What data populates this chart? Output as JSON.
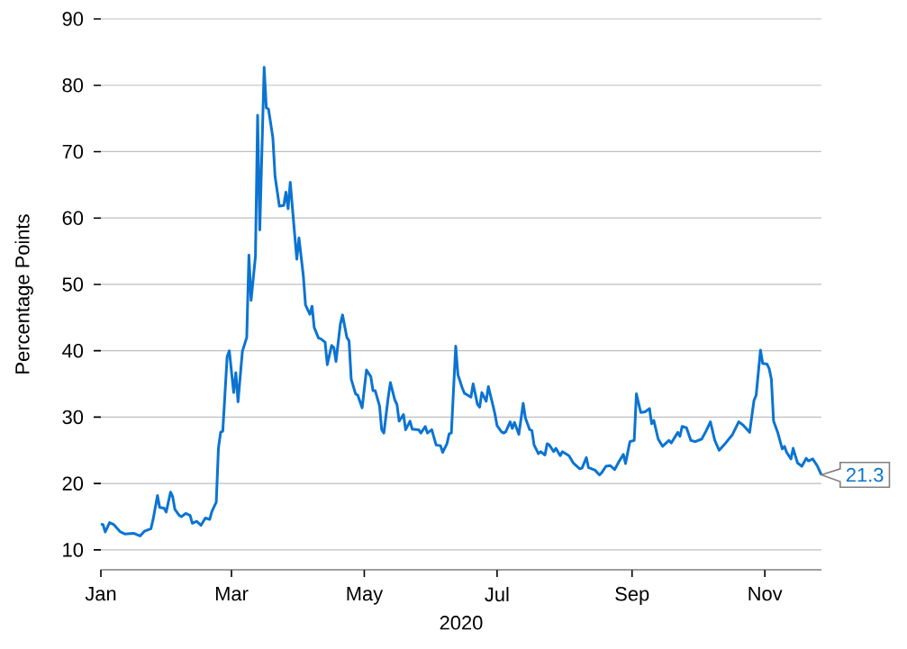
{
  "chart_data": {
    "type": "line",
    "xlabel": "2020",
    "ylabel": "Percentage Points",
    "x": [
      "2020-01-01",
      "2020-01-02",
      "2020-01-03",
      "2020-01-05",
      "2020-01-07",
      "2020-01-08",
      "2020-01-10",
      "2020-01-12",
      "2020-01-16",
      "2020-01-19",
      "2020-01-21",
      "2020-01-24",
      "2020-01-25",
      "2020-01-27",
      "2020-01-28",
      "2020-01-30",
      "2020-01-31",
      "2020-02-02",
      "2020-02-03",
      "2020-02-04",
      "2020-02-06",
      "2020-02-07",
      "2020-02-09",
      "2020-02-11",
      "2020-02-12",
      "2020-02-14",
      "2020-02-16",
      "2020-02-18",
      "2020-02-20",
      "2020-02-21",
      "2020-02-23",
      "2020-02-24",
      "2020-02-25",
      "2020-02-26",
      "2020-02-28",
      "2020-02-29",
      "2020-03-02",
      "2020-03-03",
      "2020-03-04",
      "2020-03-06",
      "2020-03-08",
      "2020-03-09",
      "2020-03-10",
      "2020-03-12",
      "2020-03-13",
      "2020-03-14",
      "2020-03-16",
      "2020-03-17",
      "2020-03-18",
      "2020-03-20",
      "2020-03-21",
      "2020-03-23",
      "2020-03-25",
      "2020-03-26",
      "2020-03-27",
      "2020-03-28",
      "2020-03-30",
      "2020-03-31",
      "2020-04-01",
      "2020-04-03",
      "2020-04-04",
      "2020-04-06",
      "2020-04-07",
      "2020-04-08",
      "2020-04-10",
      "2020-04-11",
      "2020-04-13",
      "2020-04-14",
      "2020-04-16",
      "2020-04-17",
      "2020-04-18",
      "2020-04-20",
      "2020-04-21",
      "2020-04-23",
      "2020-04-24",
      "2020-04-25",
      "2020-04-27",
      "2020-04-28",
      "2020-04-30",
      "2020-05-02",
      "2020-05-04",
      "2020-05-05",
      "2020-05-06",
      "2020-05-08",
      "2020-05-09",
      "2020-05-10",
      "2020-05-12",
      "2020-05-13",
      "2020-05-15",
      "2020-05-16",
      "2020-05-17",
      "2020-05-19",
      "2020-05-20",
      "2020-05-22",
      "2020-05-23",
      "2020-05-26",
      "2020-05-27",
      "2020-05-29",
      "2020-05-30",
      "2020-06-01",
      "2020-06-03",
      "2020-06-05",
      "2020-06-06",
      "2020-06-08",
      "2020-06-09",
      "2020-06-10",
      "2020-06-12",
      "2020-06-13",
      "2020-06-15",
      "2020-06-16",
      "2020-06-17",
      "2020-06-19",
      "2020-06-20",
      "2020-06-22",
      "2020-06-23",
      "2020-06-24",
      "2020-06-26",
      "2020-06-27",
      "2020-06-29",
      "2020-06-30",
      "2020-07-01",
      "2020-07-03",
      "2020-07-04",
      "2020-07-05",
      "2020-07-07",
      "2020-07-08",
      "2020-07-09",
      "2020-07-11",
      "2020-07-13",
      "2020-07-14",
      "2020-07-16",
      "2020-07-17",
      "2020-07-18",
      "2020-07-20",
      "2020-07-21",
      "2020-07-23",
      "2020-07-24",
      "2020-07-25",
      "2020-07-27",
      "2020-07-28",
      "2020-07-30",
      "2020-07-31",
      "2020-08-03",
      "2020-08-05",
      "2020-08-08",
      "2020-08-09",
      "2020-08-11",
      "2020-08-12",
      "2020-08-15",
      "2020-08-17",
      "2020-08-18",
      "2020-08-20",
      "2020-08-22",
      "2020-08-24",
      "2020-08-26",
      "2020-08-28",
      "2020-08-29",
      "2020-08-31",
      "2020-09-02",
      "2020-09-03",
      "2020-09-05",
      "2020-09-07",
      "2020-09-09",
      "2020-09-10",
      "2020-09-11",
      "2020-09-13",
      "2020-09-15",
      "2020-09-18",
      "2020-09-19",
      "2020-09-22",
      "2020-09-23",
      "2020-09-24",
      "2020-09-26",
      "2020-09-28",
      "2020-09-30",
      "2020-10-03",
      "2020-10-05",
      "2020-10-07",
      "2020-10-09",
      "2020-10-11",
      "2020-10-14",
      "2020-10-17",
      "2020-10-20",
      "2020-10-22",
      "2020-10-25",
      "2020-10-27",
      "2020-10-28",
      "2020-10-30",
      "2020-10-31",
      "2020-11-02",
      "2020-11-03",
      "2020-11-04",
      "2020-11-05",
      "2020-11-07",
      "2020-11-09",
      "2020-11-10",
      "2020-11-11",
      "2020-11-13",
      "2020-11-14",
      "2020-11-16",
      "2020-11-18",
      "2020-11-20",
      "2020-11-21",
      "2020-11-23",
      "2020-11-25",
      "2020-11-27"
    ],
    "series": [
      {
        "color": "#0b74d2",
        "values": [
          13.9,
          13.8,
          12.7,
          14.1,
          13.8,
          13.4,
          12.7,
          12.4,
          12.5,
          12.1,
          12.8,
          13.2,
          14.6,
          18.2,
          16.4,
          16.3,
          15.7,
          18.7,
          18.0,
          16.1,
          15.2,
          15.0,
          15.5,
          15.2,
          14.0,
          14.3,
          13.7,
          14.8,
          14.6,
          15.8,
          17.2,
          25.3,
          27.7,
          27.9,
          39.1,
          40.0,
          33.7,
          36.7,
          32.3,
          39.9,
          42.0,
          54.4,
          47.6,
          54.2,
          75.5,
          58.2,
          82.7,
          76.6,
          76.4,
          72.1,
          66.3,
          61.8,
          61.9,
          63.9,
          61.4,
          65.4,
          57.6,
          53.8,
          57.0,
          51.3,
          46.9,
          45.5,
          46.7,
          43.5,
          41.9,
          41.8,
          41.3,
          37.9,
          40.8,
          40.5,
          38.4,
          44.0,
          45.4,
          42.0,
          41.5,
          35.7,
          33.5,
          33.3,
          31.4,
          37.1,
          36.1,
          34.0,
          34.0,
          31.7,
          28.1,
          27.6,
          33.0,
          35.2,
          32.6,
          31.9,
          29.4,
          30.4,
          28.1,
          29.4,
          28.2,
          28.1,
          27.6,
          28.6,
          27.6,
          28.1,
          25.8,
          25.7,
          24.7,
          26.0,
          27.5,
          27.6,
          40.7,
          36.4,
          34.4,
          33.6,
          33.4,
          33.0,
          35.0,
          31.9,
          31.5,
          33.7,
          32.4,
          34.6,
          31.9,
          30.5,
          28.7,
          27.8,
          27.6,
          27.8,
          29.3,
          28.3,
          29.2,
          27.4,
          32.1,
          29.9,
          28.1,
          28.0,
          25.8,
          24.5,
          24.8,
          24.3,
          26.0,
          25.8,
          24.8,
          25.3,
          24.2,
          24.8,
          24.2,
          23.1,
          22.2,
          22.3,
          23.9,
          22.4,
          22.0,
          21.3,
          21.6,
          22.6,
          22.7,
          22.1,
          23.3,
          24.4,
          23.0,
          26.3,
          26.5,
          33.5,
          30.7,
          30.8,
          31.3,
          29.0,
          29.5,
          26.7,
          25.6,
          26.5,
          26.1,
          27.7,
          27.1,
          28.6,
          28.4,
          26.5,
          26.3,
          26.7,
          27.9,
          29.3,
          26.5,
          25.0,
          26.1,
          27.3,
          29.3,
          28.8,
          27.7,
          32.5,
          33.3,
          40.1,
          38.1,
          38.0,
          37.3,
          35.7,
          29.4,
          27.6,
          25.2,
          25.6,
          24.7,
          23.7,
          25.3,
          23.1,
          22.6,
          23.8,
          23.4,
          23.7,
          22.7,
          21.3
        ]
      }
    ],
    "xlim": [
      "2020-01-01",
      "2020-11-27"
    ],
    "xticks": [
      {
        "value": "2020-01-01",
        "label": "Jan"
      },
      {
        "value": "2020-03-01",
        "label": "Mar"
      },
      {
        "value": "2020-05-01",
        "label": "May"
      },
      {
        "value": "2020-07-01",
        "label": "Jul"
      },
      {
        "value": "2020-09-01",
        "label": "Sep"
      },
      {
        "value": "2020-11-01",
        "label": "Nov"
      }
    ],
    "ylim": [
      7,
      90
    ],
    "yticks": [
      10,
      20,
      30,
      40,
      50,
      60,
      70,
      80,
      90
    ],
    "grid": "y",
    "annotations": [
      {
        "text": "21.3",
        "x": "2020-11-27",
        "y": 21.3
      }
    ]
  }
}
